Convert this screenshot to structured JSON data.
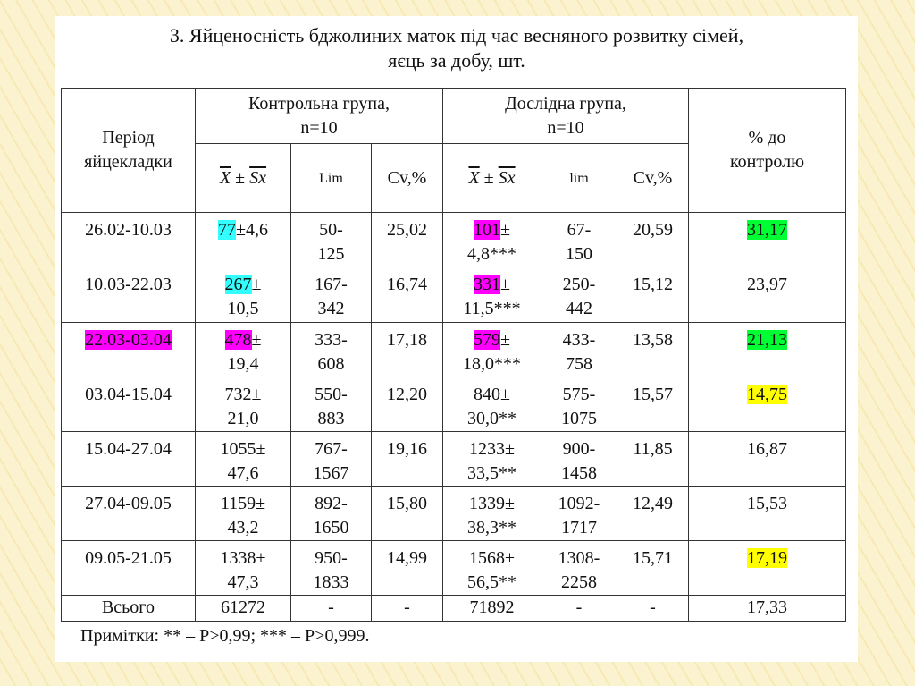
{
  "title": [
    "3. Яйценосність бджолиних маток під час весняного розвитку сімей,",
    "яєць за добу, шт."
  ],
  "table": {
    "header": {
      "period": [
        "Період",
        "яйцекладки"
      ],
      "control": [
        "Контрольна група,",
        "n=10"
      ],
      "experimental": [
        "Дослідна група,",
        "n=10"
      ],
      "percent": [
        "% до",
        "контролю"
      ],
      "sub": [
        [
          "X",
          "±",
          "Sx"
        ],
        "Lim",
        "Cv,%",
        [
          "X",
          "±",
          "Sx"
        ],
        "lim",
        "Cv,%"
      ]
    },
    "rows": [
      [
        [
          "26.02-10.03"
        ],
        [
          {
            "hl": "77",
            "text": "±4,6",
            "color": "#33ffff"
          }
        ],
        [
          "50-",
          "125"
        ],
        [
          "25,02"
        ],
        [
          {
            "hl": "101",
            "text": "±",
            "color": "#ff00ff"
          },
          "4,8***"
        ],
        [
          "67-",
          "150"
        ],
        [
          "20,59"
        ],
        [
          {
            "hl": "31,17",
            "color": "#00ff33"
          }
        ]
      ],
      [
        [
          "10.03-22.03"
        ],
        [
          {
            "hl": "267",
            "text": "±",
            "color": "#33ffff"
          },
          "10,5"
        ],
        [
          "167-",
          "342"
        ],
        [
          "16,74"
        ],
        [
          {
            "hl": "331",
            "text": "±",
            "color": "#ff00ff"
          },
          "11,5***"
        ],
        [
          "250-",
          "442"
        ],
        [
          "15,12"
        ],
        [
          "23,97"
        ]
      ],
      [
        [
          {
            "hl": "22.03-03.04",
            "color": "#ff00ff"
          }
        ],
        [
          {
            "hl": "478",
            "text": "±",
            "color": "#ff00ff"
          },
          "19,4"
        ],
        [
          "333-",
          "608"
        ],
        [
          "17,18"
        ],
        [
          {
            "hl": "579",
            "text": "±",
            "color": "#ff00ff"
          },
          "18,0***"
        ],
        [
          "433-",
          "758"
        ],
        [
          "13,58"
        ],
        [
          {
            "hl": "21,13",
            "color": "#00ff33"
          }
        ]
      ],
      [
        [
          "03.04-15.04"
        ],
        [
          "732±",
          "21,0"
        ],
        [
          "550-",
          "883"
        ],
        [
          "12,20"
        ],
        [
          "840±",
          "30,0**"
        ],
        [
          "575-",
          "1075"
        ],
        [
          "15,57"
        ],
        [
          {
            "hl": "14,75",
            "color": "#ffff00"
          }
        ]
      ],
      [
        [
          "15.04-27.04"
        ],
        [
          "1055±",
          "47,6"
        ],
        [
          "767-",
          "1567"
        ],
        [
          "19,16"
        ],
        [
          "1233±",
          "33,5**"
        ],
        [
          "900-",
          "1458"
        ],
        [
          "11,85"
        ],
        [
          "16,87"
        ]
      ],
      [
        [
          "27.04-09.05"
        ],
        [
          "1159±",
          "43,2"
        ],
        [
          "892-",
          "1650"
        ],
        [
          "15,80"
        ],
        [
          "1339±",
          "38,3**"
        ],
        [
          "1092-",
          "1717"
        ],
        [
          "12,49"
        ],
        [
          "15,53"
        ]
      ],
      [
        [
          "09.05-21.05"
        ],
        [
          "1338±",
          "47,3"
        ],
        [
          "950-",
          "1833"
        ],
        [
          "14,99"
        ],
        [
          "1568±",
          "56,5**"
        ],
        [
          "1308-",
          "2258"
        ],
        [
          "15,71"
        ],
        [
          {
            "hl": "17,19",
            "color": "#ffff00"
          }
        ]
      ],
      [
        [
          "Всього"
        ],
        [
          "61272"
        ],
        [
          "-"
        ],
        [
          "-"
        ],
        [
          "71892"
        ],
        [
          "-"
        ],
        [
          "-"
        ],
        [
          "17,33"
        ]
      ]
    ]
  },
  "note": "Примітки: ** – Р>0,99; *** – Р>0,999."
}
